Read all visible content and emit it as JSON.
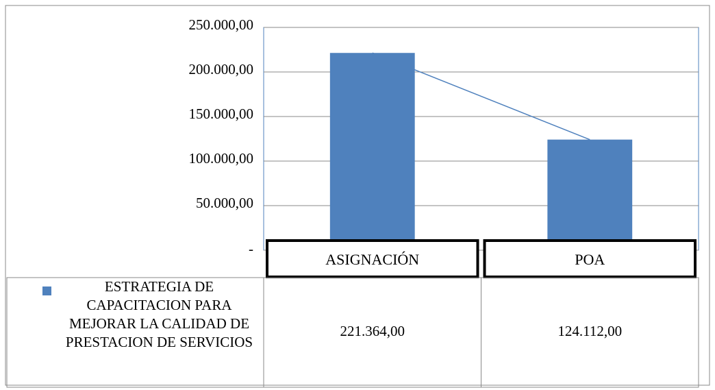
{
  "chart_data": {
    "type": "bar",
    "categories": [
      "ASIGNACIÓN",
      "POA"
    ],
    "series": [
      {
        "name": "ESTRATEGIA DE CAPACITACION PARA MEJORAR LA CALIDAD DE PRESTACION DE SERVICIOS",
        "color": "#4f81bd",
        "values": [
          221364,
          124112
        ],
        "value_labels": [
          "221.364,00",
          "124.112,00"
        ]
      }
    ],
    "connector_line": true,
    "ylim": [
      0,
      250000
    ],
    "yticks": [
      {
        "value": 0,
        "label": "-"
      },
      {
        "value": 50000,
        "label": "50.000,00"
      },
      {
        "value": 100000,
        "label": "100.000,00"
      },
      {
        "value": 150000,
        "label": "150.000,00"
      },
      {
        "value": 200000,
        "label": "200.000,00"
      },
      {
        "value": 250000,
        "label": "250.000,00"
      }
    ],
    "grid": true,
    "data_table": true
  }
}
